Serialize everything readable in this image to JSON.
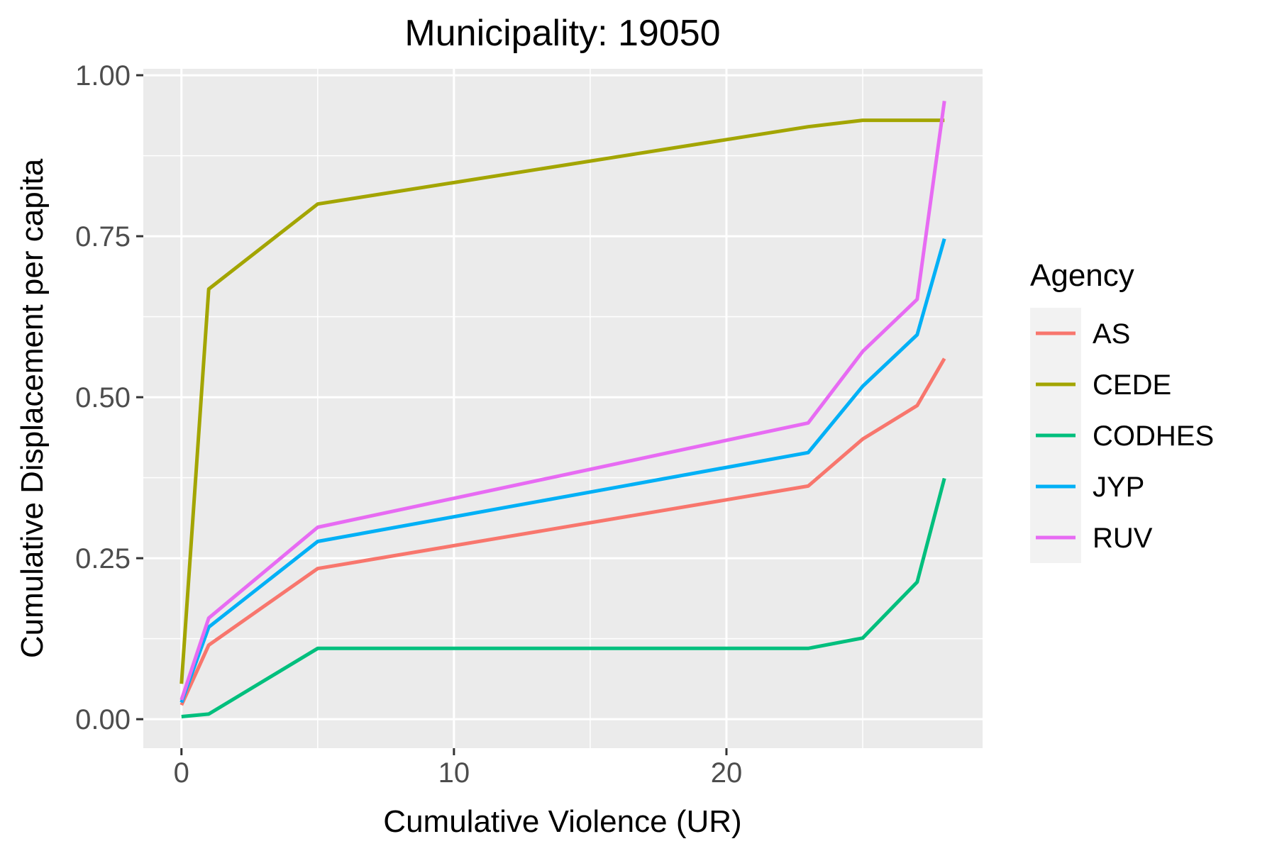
{
  "chart_data": {
    "type": "line",
    "title": "Municipality: 19050",
    "xlabel": "Cumulative Violence (UR)",
    "ylabel": "Cumulative Displacement per capita",
    "xlim": [
      -1.4,
      29.4
    ],
    "ylim": [
      -0.045,
      1.01
    ],
    "x_ticks": [
      0,
      10,
      20
    ],
    "x_tick_labels": [
      "0",
      "10",
      "20"
    ],
    "x_minor_ticks": [
      5,
      15,
      25
    ],
    "y_ticks": [
      0,
      0.25,
      0.5,
      0.75,
      1
    ],
    "y_tick_labels": [
      "0.00",
      "0.25",
      "0.50",
      "0.75",
      "1.00"
    ],
    "y_minor_ticks": [
      0.125,
      0.375,
      0.625,
      0.875
    ],
    "grid": true,
    "legend": {
      "title": "Agency",
      "placement": "right"
    },
    "series": [
      {
        "name": "AS",
        "color": "#F8766D",
        "x": [
          0,
          1,
          5,
          23,
          25,
          27,
          28
        ],
        "y": [
          0.022,
          0.115,
          0.234,
          0.362,
          0.435,
          0.487,
          0.56
        ]
      },
      {
        "name": "CEDE",
        "color": "#A3A500",
        "x": [
          0,
          1,
          5,
          23,
          25,
          27,
          28
        ],
        "y": [
          0.055,
          0.668,
          0.8,
          0.92,
          0.93,
          0.93,
          0.93
        ]
      },
      {
        "name": "CODHES",
        "color": "#00BF7D",
        "x": [
          0,
          1,
          5,
          23,
          25,
          27,
          28
        ],
        "y": [
          0.004,
          0.008,
          0.11,
          0.11,
          0.126,
          0.213,
          0.374
        ]
      },
      {
        "name": "JYP",
        "color": "#00B0F6",
        "x": [
          0,
          1,
          5,
          23,
          25,
          27,
          28
        ],
        "y": [
          0.026,
          0.143,
          0.276,
          0.414,
          0.517,
          0.597,
          0.746
        ]
      },
      {
        "name": "RUV",
        "color": "#E76BF3",
        "x": [
          0,
          1,
          5,
          23,
          25,
          27,
          28
        ],
        "y": [
          0.03,
          0.157,
          0.298,
          0.46,
          0.571,
          0.652,
          0.96
        ]
      }
    ]
  }
}
